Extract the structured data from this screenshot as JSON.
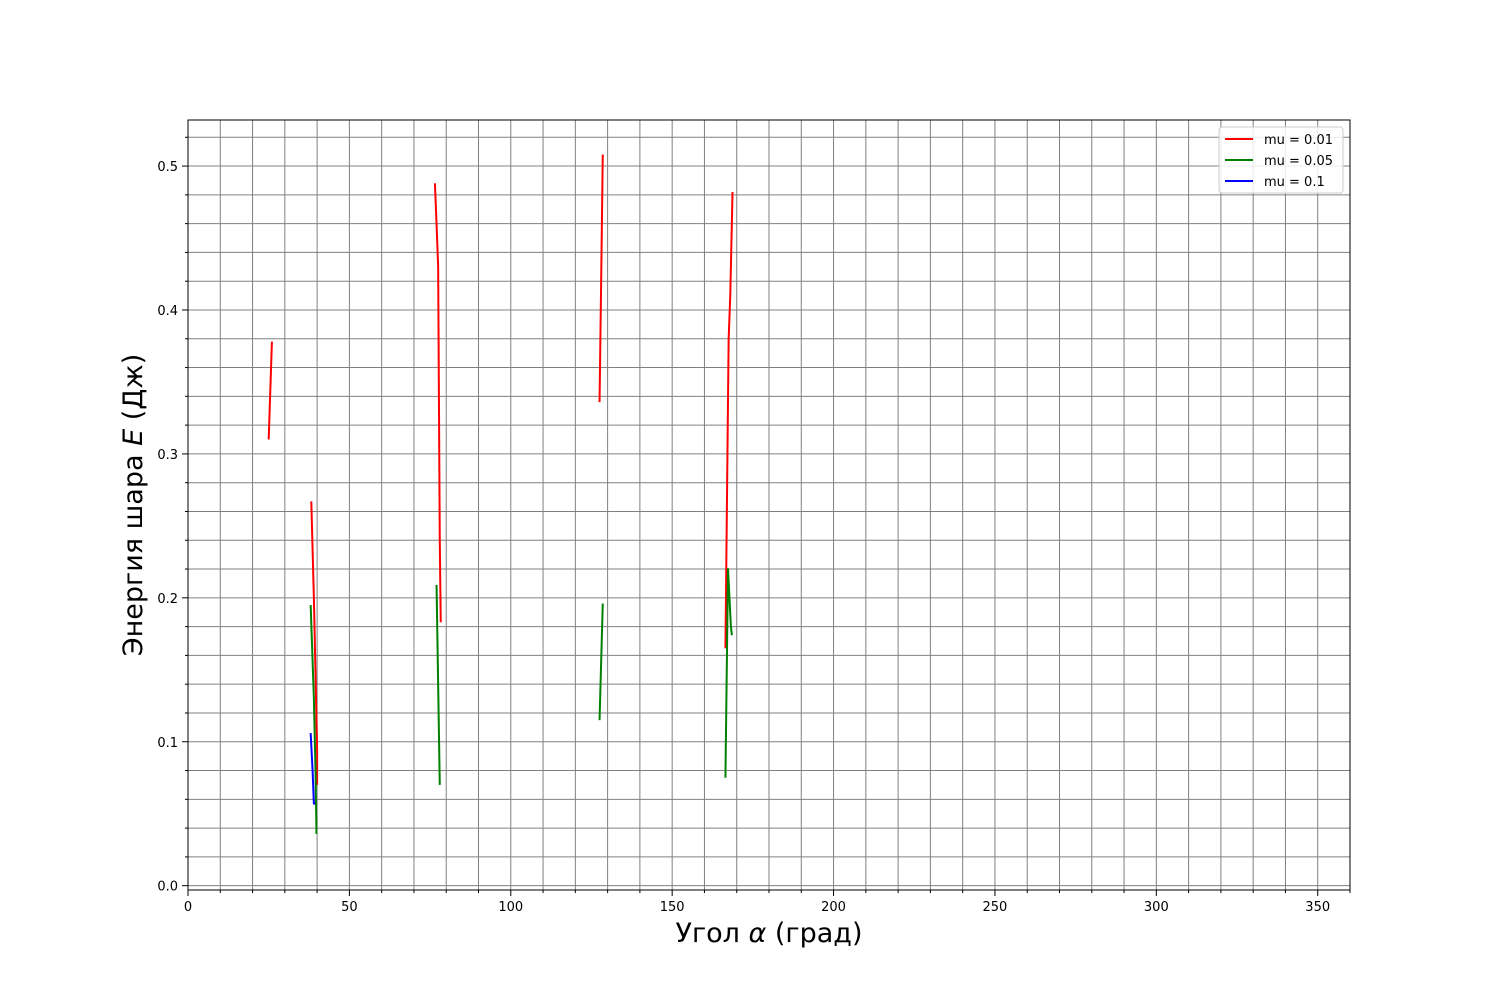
{
  "chart_data": {
    "type": "line",
    "xlabel": {
      "text": "Угол ",
      "symbol": "α",
      "unit": " (град)"
    },
    "ylabel": {
      "text": "Энергия шара ",
      "symbol": "E",
      "unit": " (Дж)"
    },
    "xlim": [
      0,
      360
    ],
    "ylim": [
      -0.003,
      0.532
    ],
    "xticks": [
      0,
      50,
      100,
      150,
      200,
      250,
      300,
      350
    ],
    "yticks": [
      0.0,
      0.1,
      0.2,
      0.3,
      0.4,
      0.5
    ],
    "x_minor_step": 10,
    "y_minor_step": 0.02,
    "grid": true,
    "legend_position": "top-right",
    "series": [
      {
        "name": "mu = 0.01",
        "color": "#ff0000",
        "segments": [
          [
            [
              25.0,
              0.31
            ],
            [
              26.0,
              0.378
            ]
          ],
          [
            [
              38.2,
              0.267
            ],
            [
              39.0,
              0.2
            ],
            [
              40.0,
              0.095
            ],
            [
              40.0,
              0.07
            ]
          ],
          [
            [
              76.5,
              0.488
            ],
            [
              77.0,
              0.46
            ],
            [
              77.5,
              0.43
            ],
            [
              78.0,
              0.24
            ],
            [
              78.3,
              0.183
            ]
          ],
          [
            [
              127.5,
              0.336
            ],
            [
              128.0,
              0.42
            ],
            [
              128.5,
              0.508
            ]
          ],
          [
            [
              166.5,
              0.165
            ],
            [
              167.5,
              0.38
            ],
            [
              168.0,
              0.41
            ],
            [
              168.7,
              0.482
            ]
          ]
        ]
      },
      {
        "name": "mu = 0.05",
        "color": "#008000",
        "segments": [
          [
            [
              38.0,
              0.195
            ],
            [
              39.0,
              0.13
            ],
            [
              39.5,
              0.08
            ],
            [
              39.8,
              0.036
            ]
          ],
          [
            [
              77.0,
              0.209
            ],
            [
              77.5,
              0.14
            ],
            [
              78.0,
              0.07
            ]
          ],
          [
            [
              127.5,
              0.115
            ],
            [
              128.5,
              0.196
            ]
          ],
          [
            [
              166.5,
              0.075
            ],
            [
              167.3,
              0.22
            ],
            [
              168.2,
              0.18
            ],
            [
              168.5,
              0.174
            ]
          ]
        ]
      },
      {
        "name": "mu = 0.1",
        "color": "#0000ff",
        "segments": [
          [
            [
              38.0,
              0.106
            ],
            [
              38.6,
              0.08
            ],
            [
              39.0,
              0.057
            ],
            [
              39.4,
              0.057
            ]
          ]
        ]
      }
    ]
  }
}
